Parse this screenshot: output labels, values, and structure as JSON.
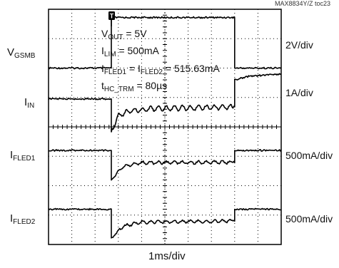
{
  "figure_id": "MAX8834Y/Z toc23",
  "x_axis_label": "1ms/div",
  "trigger_marker": "T",
  "channels": [
    {
      "name": "V",
      "sub": "GSMB",
      "scale": "2V/div"
    },
    {
      "name": "I",
      "sub": "IN",
      "scale": "1A/div"
    },
    {
      "name": "I",
      "sub": "FLED1",
      "scale": "500mA/div"
    },
    {
      "name": "I",
      "sub": "FLED2",
      "scale": "500mA/div"
    }
  ],
  "annotations": {
    "line1": {
      "a": "V",
      "a_sub": "OUT",
      "b": " = 5V"
    },
    "line2": {
      "a": "I",
      "a_sub": "LIM",
      "b": " = 500mA"
    },
    "line3": {
      "a": "I",
      "a_sub": "FLED1",
      "b": " = I",
      "c_sub": "FLED2",
      "d": " = 515.63mA"
    },
    "line4": {
      "a": "t",
      "a_sub": "HC_TRM",
      "b": " = 80µs"
    }
  },
  "colors": {
    "trace": "#000000",
    "grid": "#000000",
    "background": "#ffffff"
  },
  "chart_data": {
    "type": "line",
    "x_unit": "div",
    "x_divisions": 10,
    "y_divisions": 8,
    "grid": true,
    "series": [
      {
        "name": "VGSMB",
        "points": [
          [
            0,
            6.0
          ],
          [
            2.7,
            6.0
          ],
          [
            2.7,
            7.72
          ],
          [
            8.0,
            7.72
          ],
          [
            8.0,
            6.0
          ],
          [
            10,
            6.0
          ]
        ]
      },
      {
        "name": "IIN",
        "points": [
          [
            0,
            4.95
          ],
          [
            2.7,
            4.95
          ],
          [
            2.7,
            3.85
          ],
          [
            3.0,
            4.38
          ],
          [
            3.5,
            4.55
          ],
          [
            4.5,
            4.62
          ],
          [
            8.0,
            4.68
          ],
          [
            8.0,
            5.6
          ],
          [
            8.6,
            5.72
          ],
          [
            10,
            5.8
          ]
        ]
      },
      {
        "name": "IFLED1",
        "points": [
          [
            0,
            3.2
          ],
          [
            2.7,
            3.2
          ],
          [
            2.7,
            2.2
          ],
          [
            3.2,
            2.65
          ],
          [
            4.0,
            2.78
          ],
          [
            8.0,
            2.8
          ],
          [
            8.0,
            3.2
          ],
          [
            10,
            3.2
          ]
        ]
      },
      {
        "name": "IFLED2",
        "points": [
          [
            0,
            1.2
          ],
          [
            2.7,
            1.2
          ],
          [
            2.7,
            0.22
          ],
          [
            3.2,
            0.62
          ],
          [
            4.0,
            0.76
          ],
          [
            8.0,
            0.8
          ],
          [
            8.0,
            1.2
          ],
          [
            10,
            1.2
          ]
        ]
      }
    ]
  }
}
